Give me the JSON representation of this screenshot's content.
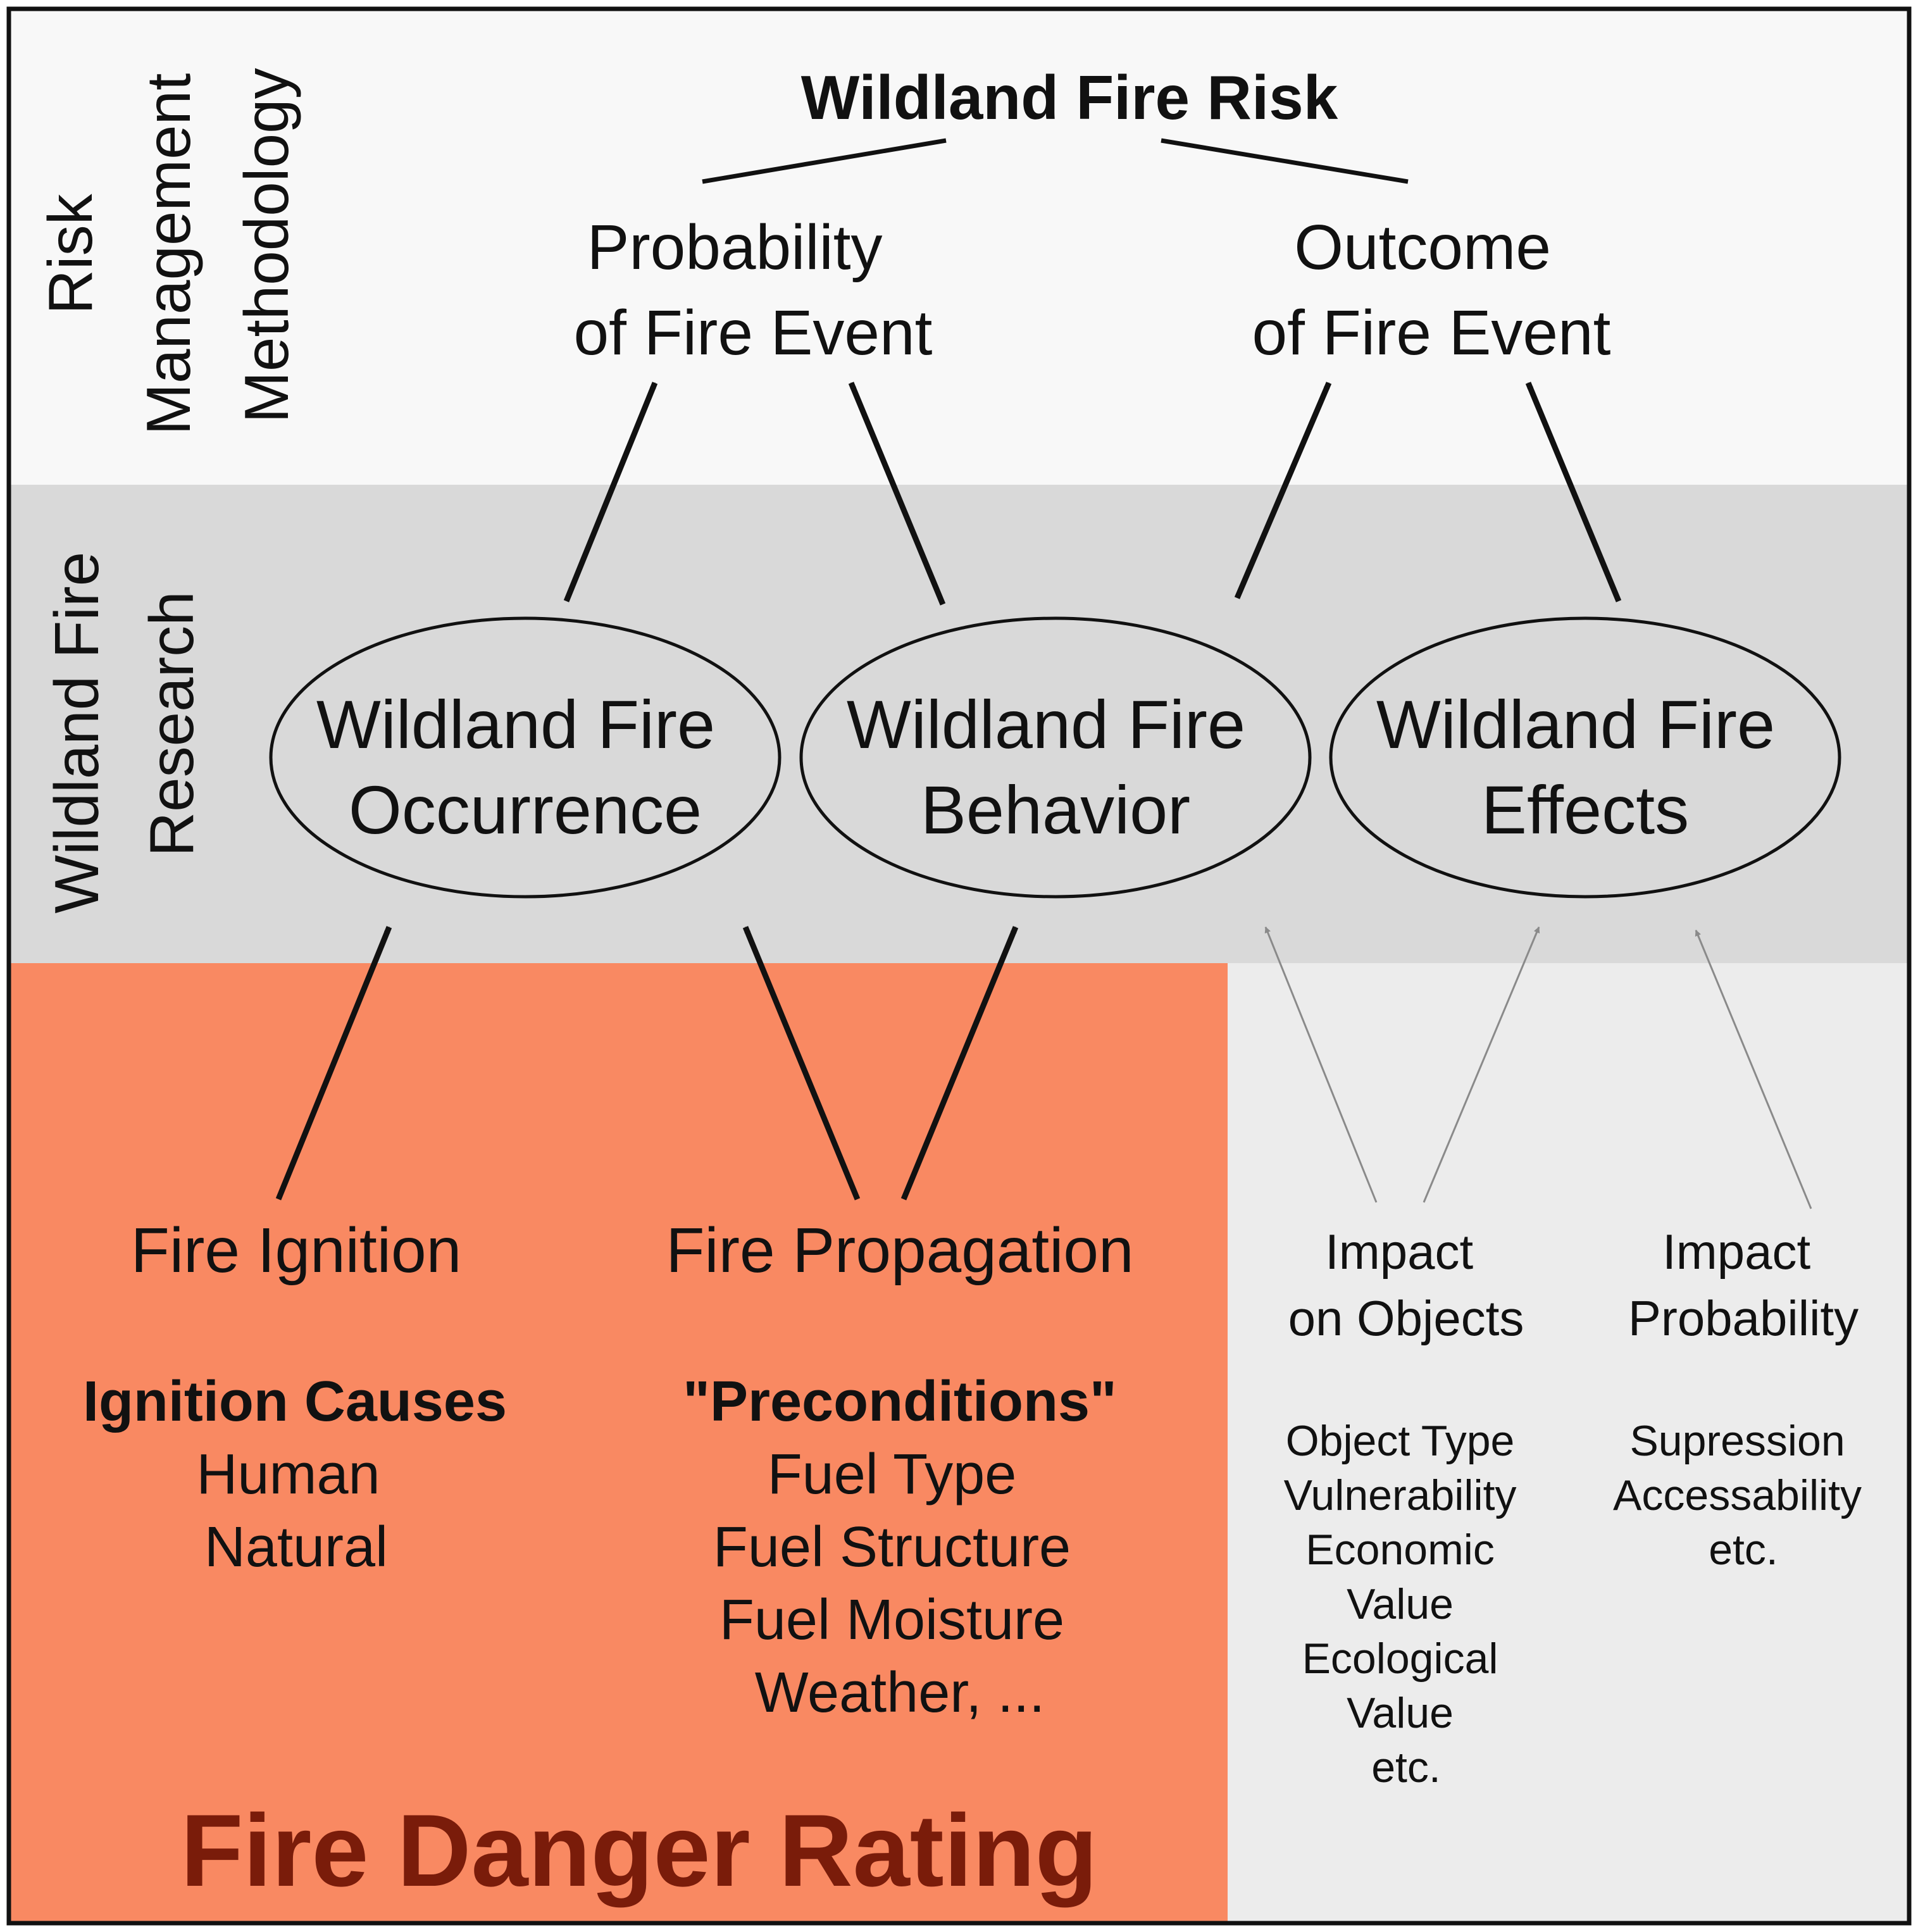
{
  "colors": {
    "top_band": "#f8f8f8",
    "research_band": "#d9d9d9",
    "danger_panel": "#f98962",
    "impact_panel": "#ececec",
    "danger_title": "#7a1c0a",
    "gray_arrow": "#8a8a8a",
    "border": "#111111"
  },
  "bands": {
    "risk_label": [
      "Risk",
      "Management",
      "Methodology"
    ],
    "research_label": [
      "Wildland Fire",
      "Research"
    ]
  },
  "top": {
    "title": "Wildland Fire Risk",
    "probability": [
      "Probability",
      "of Fire Event"
    ],
    "outcome": [
      "Outcome",
      "of Fire Event"
    ]
  },
  "nodes": {
    "occurrence": [
      "Wildland Fire",
      "Occurrence"
    ],
    "behavior": [
      "Wildland Fire",
      "Behavior"
    ],
    "effects": [
      "Wildland Fire",
      "Effects"
    ]
  },
  "danger": {
    "ignition": "Fire Ignition",
    "propagation": "Fire Propagation",
    "ignition_causes": {
      "heading": "Ignition Causes",
      "items": [
        "Human",
        "Natural"
      ]
    },
    "preconditions": {
      "heading": "\"Preconditions\"",
      "items": [
        "Fuel Type",
        "Fuel Structure",
        "Fuel Moisture",
        "Weather, ..."
      ]
    },
    "rating_title": "Fire Danger Rating"
  },
  "impact": {
    "objects": {
      "heading": [
        "Impact",
        "on Objects"
      ],
      "items": [
        "Object Type",
        "Vulnerability",
        "Economic",
        "Value",
        "Ecological",
        "Value",
        "etc."
      ]
    },
    "probability": {
      "heading": [
        "Impact",
        "Probability"
      ],
      "items": [
        "Supression",
        "Accessability",
        "etc."
      ]
    }
  }
}
